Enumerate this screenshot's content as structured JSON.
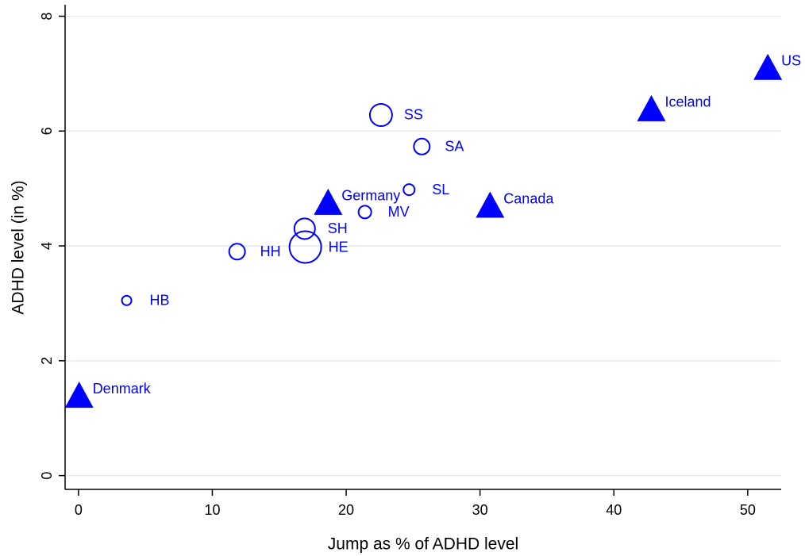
{
  "chart_data": {
    "type": "scatter",
    "x_label": "Jump as % of ADHD level",
    "y_label": "ADHD level (in %)",
    "xlim": [
      -1,
      52.5
    ],
    "ylim": [
      -0.24,
      8.2
    ],
    "xticks": [
      0,
      10,
      20,
      30,
      40,
      50
    ],
    "yticks": [
      0,
      2,
      4,
      6,
      8
    ],
    "grid": true,
    "series": [
      {
        "marker": "circle",
        "color": "#0000ff",
        "labels": [
          "SS",
          "SA",
          "SL",
          "MV",
          "SH",
          "HE",
          "HH",
          "HB"
        ],
        "x": [
          22.6,
          25.65,
          24.7,
          21.4,
          16.9,
          16.95,
          11.85,
          3.6
        ],
        "y": [
          6.28,
          5.73,
          4.98,
          4.59,
          4.3,
          3.98,
          3.9,
          3.05
        ],
        "sizes": [
          14,
          10,
          7,
          8,
          13,
          20,
          10,
          6
        ]
      },
      {
        "marker": "triangle",
        "color": "#0000ff",
        "labels": [
          "US",
          "Iceland",
          "Canada",
          "Germany",
          "Denmark"
        ],
        "x": [
          51.5,
          42.8,
          30.75,
          18.65,
          0.05
        ],
        "y": [
          7.07,
          6.35,
          4.67,
          4.72,
          1.36
        ]
      }
    ]
  }
}
